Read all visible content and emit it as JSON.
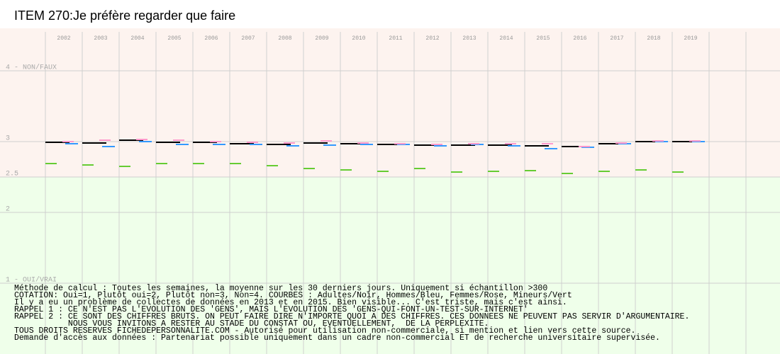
{
  "chart_data": {
    "type": "dash",
    "title": "ITEM 270:Je préfère regarder que faire",
    "categories": [
      "2002",
      "2003",
      "2004",
      "2005",
      "2006",
      "2007",
      "2008",
      "2009",
      "2010",
      "2011",
      "2012",
      "2013",
      "2014",
      "2015",
      "2016",
      "2017",
      "2018",
      "2019"
    ],
    "series": [
      {
        "color": "#000000",
        "values": [
          2.99,
          2.98,
          3.02,
          2.99,
          2.99,
          2.97,
          2.96,
          2.98,
          2.97,
          2.96,
          2.95,
          2.95,
          2.95,
          2.94,
          2.93,
          2.97,
          3.0,
          3.0
        ]
      },
      {
        "color": "#3399ff",
        "values": [
          2.97,
          2.93,
          3.0,
          2.96,
          2.96,
          2.96,
          2.94,
          2.95,
          2.96,
          2.96,
          2.94,
          2.96,
          2.94,
          2.9,
          2.92,
          2.97,
          3.0,
          3.0
        ]
      },
      {
        "color": "#ff99cc",
        "values": [
          3.0,
          3.02,
          3.03,
          3.02,
          3.0,
          2.99,
          2.98,
          3.01,
          2.98,
          2.97,
          2.96,
          2.97,
          2.97,
          2.97,
          2.93,
          2.98,
          3.01,
          3.01
        ]
      },
      {
        "color": "#66cc33",
        "values": [
          2.69,
          2.67,
          2.65,
          2.69,
          2.69,
          2.69,
          2.66,
          2.62,
          2.6,
          2.58,
          2.62,
          2.57,
          2.58,
          2.59,
          2.55,
          2.58,
          2.6,
          2.57
        ]
      }
    ],
    "ylim": [
      1,
      4
    ],
    "yticks": [
      {
        "value": 4,
        "label": "4 - NON/FAUX"
      },
      3,
      2.5,
      2,
      {
        "value": 1,
        "label": "1 - OUI/VRAI"
      }
    ],
    "grid": true,
    "notes": [
      "Méthode de calcul : Toutes les semaines, la moyenne sur les 30 derniers jours. Uniquement si échantillon >300",
      "COTATION: Oui=1, Plutôt oui=2, Plutôt non=3, Non=4. COURBES : Adultes/Noir, Hommes/Bleu, Femmes/Rose, Mineurs/Vert",
      "Il y a eu un problème de collectes de données en 2013 et en 2015. Bien visible... C'est triste, mais c'est ainsi.",
      "RAPPEL 1 : CE N'EST PAS L'EVOLUTION DES 'GENS', MAIS L'EVOLUTION DES 'GENS-QUI-FONT-UN-TEST-SUR-INTERNET'",
      "RAPPEL 2 : CE SONT DES CHIFFRES BRUTS. ON PEUT FAIRE DIRE N'IMPORTE QUOI A DES CHIFFRES. CES DONNEES NE PEUVENT PAS SERVIR D'ARGUMENTAIRE.",
      "           NOUS VOUS INVITONS A RESTER AU STADE DU CONSTAT OU, EVENTUELLEMENT,  DE LA PERPLEXITE.",
      "TOUS DROITS RESERVES FICHEDEPERSONNALITE.COM - Autorisé pour utilisation non-commerciale, si mention et lien vers cette source.",
      "Demande d'accès aux données : Partenariat possible uniquement dans un cadre non-commercial ET de recherche universitaire supervisée."
    ]
  }
}
